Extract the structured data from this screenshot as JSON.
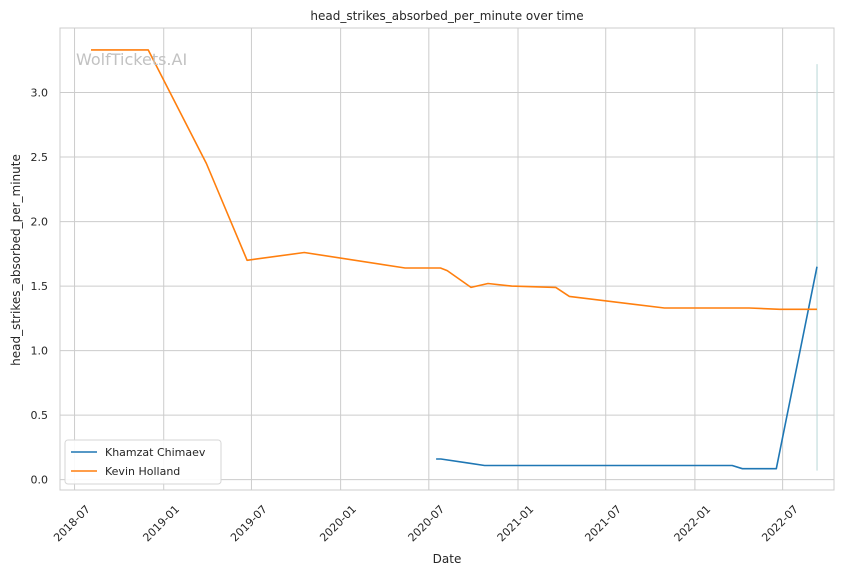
{
  "watermark": "WolfTickets.AI",
  "chart_data": {
    "type": "line",
    "title": "head_strikes_absorbed_per_minute over time",
    "xlabel": "Date",
    "ylabel": "head_strikes_absorbed_per_minute",
    "x_axis_type": "date",
    "xlim": [
      "2018-06-01",
      "2022-10-15"
    ],
    "ylim": [
      -0.08,
      3.5
    ],
    "x_ticks": [
      "2018-07",
      "2019-01",
      "2019-07",
      "2020-01",
      "2020-07",
      "2021-01",
      "2021-07",
      "2022-01",
      "2022-07"
    ],
    "y_ticks": [
      0.0,
      0.5,
      1.0,
      1.5,
      2.0,
      2.5,
      3.0
    ],
    "y_tick_labels": [
      "0.0",
      "0.5",
      "1.0",
      "1.5",
      "2.0",
      "2.5",
      "3.0"
    ],
    "grid": true,
    "legend_position": "lower-left",
    "series": [
      {
        "name": "Khamzat Chimaev",
        "color": "#1f77b4",
        "points": [
          {
            "x": "2020-07-16",
            "y": 0.16
          },
          {
            "x": "2020-07-26",
            "y": 0.16
          },
          {
            "x": "2020-09-19",
            "y": 0.13
          },
          {
            "x": "2020-10-24",
            "y": 0.11
          },
          {
            "x": "2021-10-30",
            "y": 0.11
          },
          {
            "x": "2022-01-15",
            "y": 0.11
          },
          {
            "x": "2022-03-19",
            "y": 0.11
          },
          {
            "x": "2022-04-09",
            "y": 0.085
          },
          {
            "x": "2022-06-18",
            "y": 0.085
          },
          {
            "x": "2022-09-10",
            "y": 1.65
          }
        ]
      },
      {
        "name": "Kevin Holland",
        "color": "#ff7f0e",
        "points": [
          {
            "x": "2018-08-04",
            "y": 3.33
          },
          {
            "x": "2018-11-30",
            "y": 3.33
          },
          {
            "x": "2019-03-30",
            "y": 2.45
          },
          {
            "x": "2019-06-22",
            "y": 1.7
          },
          {
            "x": "2019-10-18",
            "y": 1.76
          },
          {
            "x": "2020-05-13",
            "y": 1.64
          },
          {
            "x": "2020-07-25",
            "y": 1.64
          },
          {
            "x": "2020-08-08",
            "y": 1.62
          },
          {
            "x": "2020-09-26",
            "y": 1.49
          },
          {
            "x": "2020-10-31",
            "y": 1.52
          },
          {
            "x": "2020-12-19",
            "y": 1.5
          },
          {
            "x": "2021-03-20",
            "y": 1.49
          },
          {
            "x": "2021-04-17",
            "y": 1.42
          },
          {
            "x": "2021-10-30",
            "y": 1.33
          },
          {
            "x": "2022-04-23",
            "y": 1.33
          },
          {
            "x": "2022-06-25",
            "y": 1.32
          },
          {
            "x": "2022-09-10",
            "y": 1.32
          }
        ]
      }
    ],
    "reference_line": {
      "x": "2022-09-10",
      "y_range": [
        0.07,
        3.22
      ],
      "color": "#b8d8d8"
    }
  }
}
